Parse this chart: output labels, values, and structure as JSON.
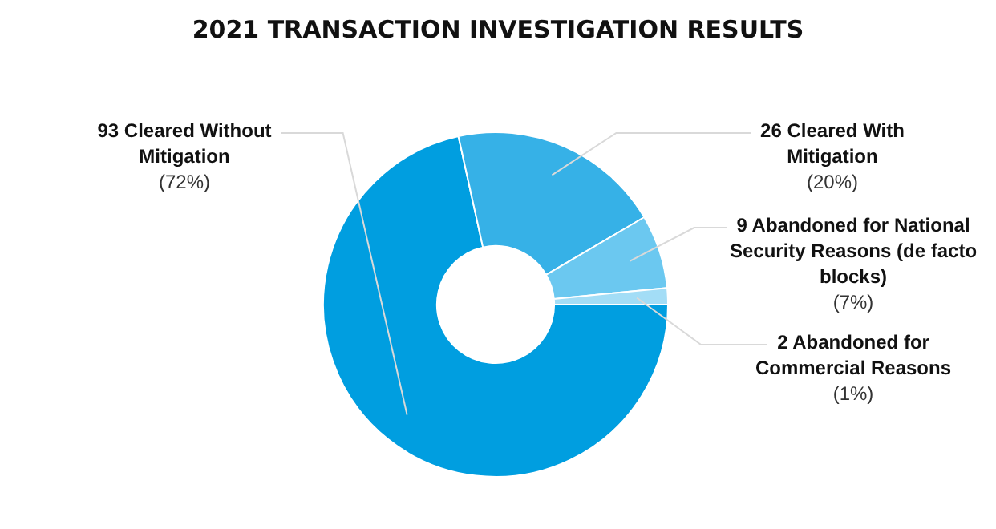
{
  "chart_data": {
    "type": "donut",
    "title": "2021 TRANSACTION INVESTIGATION RESULTS",
    "categories": [
      "Cleared Without Mitigation",
      "Cleared With Mitigation",
      "Abandoned for National Security Reasons (de facto blocks)",
      "Abandoned for Commercial Reasons"
    ],
    "values": [
      93,
      26,
      9,
      2
    ],
    "value_labels": [
      "93",
      "26",
      "9",
      "2"
    ],
    "colors": [
      "#009ee0",
      "#36b1e7",
      "#6bc8f0",
      "#a3ddf6"
    ],
    "annotations": [
      "(72%)",
      "(20%)",
      "(7%)",
      "(1%)"
    ],
    "legend": false
  }
}
